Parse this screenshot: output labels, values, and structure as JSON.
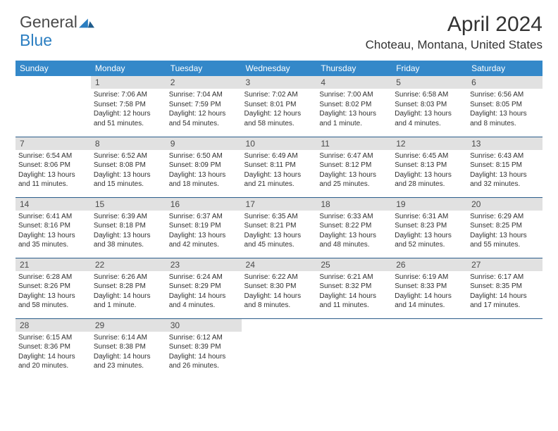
{
  "logo": {
    "word1": "General",
    "word2": "Blue"
  },
  "title": "April 2024",
  "location": "Choteau, Montana, United States",
  "colors": {
    "header_bg": "#3488c9",
    "header_text": "#ffffff",
    "daynum_bg": "#e1e1e1",
    "cell_border": "#2b5d8a",
    "body_text": "#303030",
    "title_text": "#333333",
    "logo_gray": "#4a4a4a",
    "logo_blue": "#2b7ec1"
  },
  "dayNames": [
    "Sunday",
    "Monday",
    "Tuesday",
    "Wednesday",
    "Thursday",
    "Friday",
    "Saturday"
  ],
  "weeks": [
    [
      null,
      {
        "n": "1",
        "sr": "7:06 AM",
        "ss": "7:58 PM",
        "dl": "12 hours and 51 minutes."
      },
      {
        "n": "2",
        "sr": "7:04 AM",
        "ss": "7:59 PM",
        "dl": "12 hours and 54 minutes."
      },
      {
        "n": "3",
        "sr": "7:02 AM",
        "ss": "8:01 PM",
        "dl": "12 hours and 58 minutes."
      },
      {
        "n": "4",
        "sr": "7:00 AM",
        "ss": "8:02 PM",
        "dl": "13 hours and 1 minute."
      },
      {
        "n": "5",
        "sr": "6:58 AM",
        "ss": "8:03 PM",
        "dl": "13 hours and 4 minutes."
      },
      {
        "n": "6",
        "sr": "6:56 AM",
        "ss": "8:05 PM",
        "dl": "13 hours and 8 minutes."
      }
    ],
    [
      {
        "n": "7",
        "sr": "6:54 AM",
        "ss": "8:06 PM",
        "dl": "13 hours and 11 minutes."
      },
      {
        "n": "8",
        "sr": "6:52 AM",
        "ss": "8:08 PM",
        "dl": "13 hours and 15 minutes."
      },
      {
        "n": "9",
        "sr": "6:50 AM",
        "ss": "8:09 PM",
        "dl": "13 hours and 18 minutes."
      },
      {
        "n": "10",
        "sr": "6:49 AM",
        "ss": "8:11 PM",
        "dl": "13 hours and 21 minutes."
      },
      {
        "n": "11",
        "sr": "6:47 AM",
        "ss": "8:12 PM",
        "dl": "13 hours and 25 minutes."
      },
      {
        "n": "12",
        "sr": "6:45 AM",
        "ss": "8:13 PM",
        "dl": "13 hours and 28 minutes."
      },
      {
        "n": "13",
        "sr": "6:43 AM",
        "ss": "8:15 PM",
        "dl": "13 hours and 32 minutes."
      }
    ],
    [
      {
        "n": "14",
        "sr": "6:41 AM",
        "ss": "8:16 PM",
        "dl": "13 hours and 35 minutes."
      },
      {
        "n": "15",
        "sr": "6:39 AM",
        "ss": "8:18 PM",
        "dl": "13 hours and 38 minutes."
      },
      {
        "n": "16",
        "sr": "6:37 AM",
        "ss": "8:19 PM",
        "dl": "13 hours and 42 minutes."
      },
      {
        "n": "17",
        "sr": "6:35 AM",
        "ss": "8:21 PM",
        "dl": "13 hours and 45 minutes."
      },
      {
        "n": "18",
        "sr": "6:33 AM",
        "ss": "8:22 PM",
        "dl": "13 hours and 48 minutes."
      },
      {
        "n": "19",
        "sr": "6:31 AM",
        "ss": "8:23 PM",
        "dl": "13 hours and 52 minutes."
      },
      {
        "n": "20",
        "sr": "6:29 AM",
        "ss": "8:25 PM",
        "dl": "13 hours and 55 minutes."
      }
    ],
    [
      {
        "n": "21",
        "sr": "6:28 AM",
        "ss": "8:26 PM",
        "dl": "13 hours and 58 minutes."
      },
      {
        "n": "22",
        "sr": "6:26 AM",
        "ss": "8:28 PM",
        "dl": "14 hours and 1 minute."
      },
      {
        "n": "23",
        "sr": "6:24 AM",
        "ss": "8:29 PM",
        "dl": "14 hours and 4 minutes."
      },
      {
        "n": "24",
        "sr": "6:22 AM",
        "ss": "8:30 PM",
        "dl": "14 hours and 8 minutes."
      },
      {
        "n": "25",
        "sr": "6:21 AM",
        "ss": "8:32 PM",
        "dl": "14 hours and 11 minutes."
      },
      {
        "n": "26",
        "sr": "6:19 AM",
        "ss": "8:33 PM",
        "dl": "14 hours and 14 minutes."
      },
      {
        "n": "27",
        "sr": "6:17 AM",
        "ss": "8:35 PM",
        "dl": "14 hours and 17 minutes."
      }
    ],
    [
      {
        "n": "28",
        "sr": "6:15 AM",
        "ss": "8:36 PM",
        "dl": "14 hours and 20 minutes."
      },
      {
        "n": "29",
        "sr": "6:14 AM",
        "ss": "8:38 PM",
        "dl": "14 hours and 23 minutes."
      },
      {
        "n": "30",
        "sr": "6:12 AM",
        "ss": "8:39 PM",
        "dl": "14 hours and 26 minutes."
      },
      null,
      null,
      null,
      null
    ]
  ],
  "labels": {
    "sunrise": "Sunrise:",
    "sunset": "Sunset:",
    "daylight": "Daylight:"
  }
}
